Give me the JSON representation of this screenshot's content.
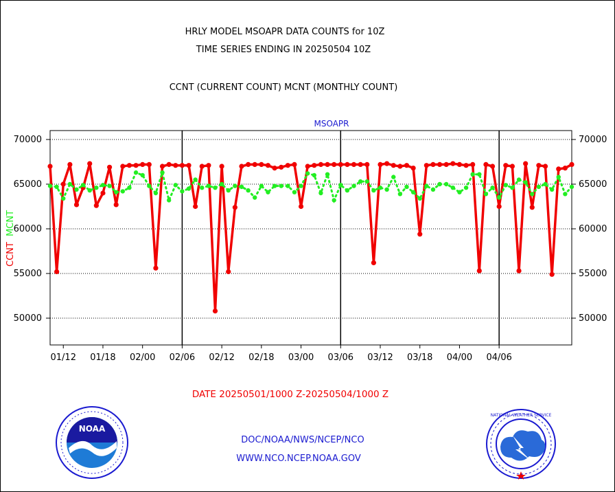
{
  "header": {
    "line1": "HRLY MODEL MSOAPR DATA COUNTS for 10Z",
    "line2": "TIME SERIES ENDING IN 20250504 10Z",
    "line3": "CCNT (CURRENT COUNT) MCNT (MONTHLY COUNT)"
  },
  "footer": {
    "date_range": "DATE 20250501/1000 Z-20250504/1000 Z",
    "link1": "DOC/NOAA/NWS/NCEP/NCO",
    "link2": "WWW.NCO.NCEP.NOAA.GOV"
  },
  "logos": {
    "left_text": "NOAA",
    "right_text": "NATIONAL WEATHER SERVICE"
  },
  "colors": {
    "ccnt": "#f00000",
    "mcnt": "#22ee22",
    "title": "#1a1ad0",
    "text": "#000000"
  },
  "chart_data": {
    "type": "line",
    "title": "MSOAPR",
    "ylabel_ccnt": "CCNT",
    "ylabel_mcnt": "MCNT",
    "ylim": [
      47000,
      71000
    ],
    "yticks": [
      "70000",
      "65000",
      "60000",
      "55000",
      "50000"
    ],
    "ytick_values": [
      70000,
      65000,
      60000,
      55000,
      50000
    ],
    "xticks": [
      "01/12",
      "01/18",
      "02/00",
      "02/06",
      "02/12",
      "02/18",
      "03/00",
      "03/06",
      "03/12",
      "03/18",
      "04/00",
      "04/06"
    ],
    "xtick_hours": [
      2,
      8,
      14,
      20,
      26,
      32,
      38,
      44,
      50,
      56,
      62,
      68
    ],
    "day_boundaries_hours": [
      20,
      44,
      68
    ],
    "grid": true,
    "series": [
      {
        "name": "CCNT",
        "color": "#f00000",
        "style": "solid",
        "values": [
          67000,
          55200,
          65000,
          67200,
          62700,
          64600,
          67300,
          62600,
          64000,
          66900,
          62700,
          67000,
          67100,
          67100,
          67200,
          67200,
          55600,
          67000,
          67200,
          67100,
          67100,
          67100,
          62500,
          67000,
          67100,
          50800,
          67000,
          55200,
          62400,
          67000,
          67200,
          67200,
          67200,
          67100,
          66800,
          66900,
          67100,
          67200,
          62500,
          67000,
          67100,
          67200,
          67200,
          67200,
          67200,
          67200,
          67200,
          67200,
          67200,
          56200,
          67200,
          67300,
          67100,
          67000,
          67100,
          66800,
          59400,
          67100,
          67200,
          67200,
          67200,
          67300,
          67200,
          67100,
          67200,
          55300,
          67200,
          67000,
          62500,
          67100,
          67000,
          55300,
          67300,
          62400,
          67100,
          67000,
          54900,
          66700,
          66800,
          67200
        ]
      },
      {
        "name": "MCNT",
        "color": "#22ee22",
        "style": "dotted",
        "values": [
          64800,
          64700,
          63400,
          65000,
          64400,
          64900,
          64300,
          64600,
          64900,
          64800,
          64100,
          64200,
          64600,
          66300,
          66000,
          64800,
          64000,
          66300,
          63200,
          64900,
          64200,
          64500,
          65500,
          64600,
          64800,
          64600,
          65000,
          64300,
          64800,
          64700,
          64300,
          63500,
          64800,
          64100,
          64800,
          64800,
          64800,
          64100,
          64800,
          66200,
          66000,
          64000,
          66100,
          63200,
          64900,
          64300,
          64800,
          65300,
          65300,
          64300,
          64600,
          64400,
          65800,
          63900,
          64700,
          64100,
          63400,
          64800,
          64400,
          65000,
          65000,
          64600,
          64100,
          64600,
          66100,
          66100,
          63900,
          64600,
          63500,
          64900,
          64600,
          65500,
          65200,
          63900,
          64700,
          65000,
          64400,
          65800,
          63900,
          64700
        ]
      }
    ]
  }
}
